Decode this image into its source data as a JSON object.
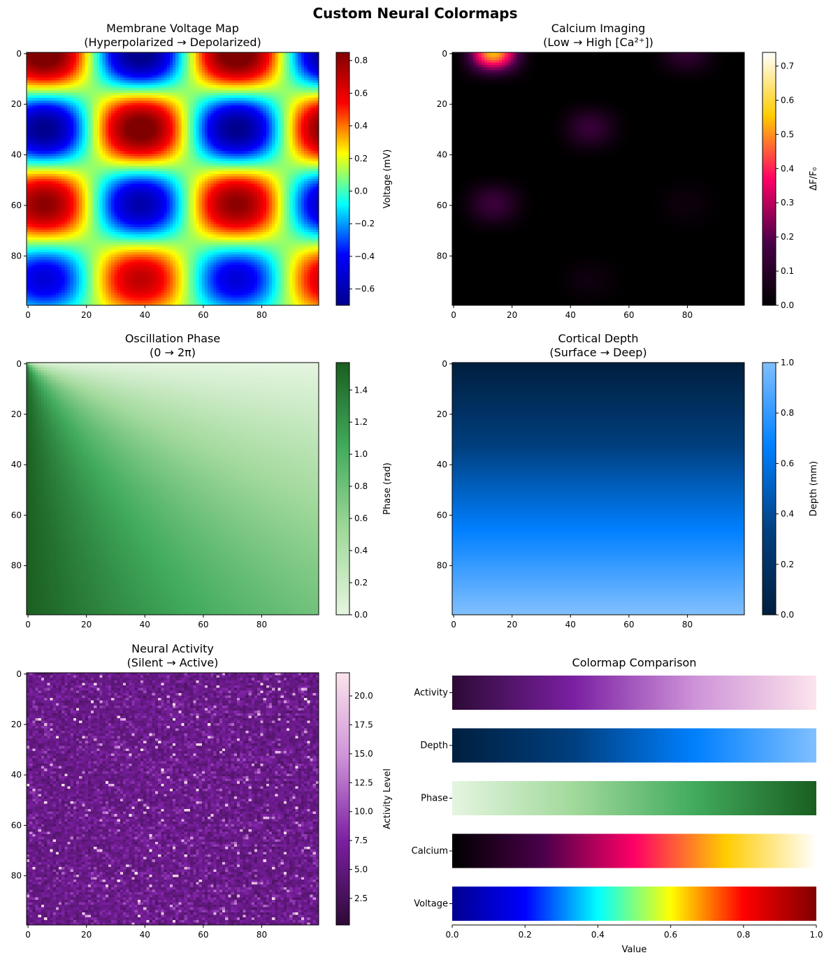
{
  "figure": {
    "title": "Custom Neural Colormaps"
  },
  "colormaps": {
    "Voltage": [
      "#00008f",
      "#0000ff",
      "#00ffff",
      "#ffff00",
      "#ff0000",
      "#800000"
    ],
    "Calcium": [
      "#000000",
      "#4a004a",
      "#ff0066",
      "#ffcc00",
      "#ffffff"
    ],
    "Phase": [
      "#e5f5e0",
      "#a1d99b",
      "#41ab5d",
      "#1a5e20"
    ],
    "Depth": [
      "#001f3f",
      "#003f7f",
      "#0080ff",
      "#80bfff"
    ],
    "Activity": [
      "#2d0a36",
      "#7b1fa2",
      "#ce93d8",
      "#fce4ec"
    ]
  },
  "chart_data": [
    {
      "type": "heatmap",
      "title": "Membrane Voltage Map\n(Hyperpolarized → Depolarized)",
      "field": "voltage",
      "grid": [
        100,
        100
      ],
      "colormap": "Voltage",
      "colorbar": {
        "label": "Voltage (mV)",
        "range": [
          -0.7,
          0.85
        ],
        "ticks": [
          -0.6,
          -0.4,
          -0.2,
          0.0,
          0.2,
          0.4,
          0.6,
          0.8
        ],
        "tick_labels": [
          "−0.6",
          "−0.4",
          "−0.2",
          "0.0",
          "0.2",
          "0.4",
          "0.6",
          "0.8"
        ]
      },
      "xticks": [
        0,
        20,
        40,
        60,
        80
      ],
      "yticks": [
        0,
        20,
        40,
        60,
        80
      ]
    },
    {
      "type": "heatmap",
      "title": "Calcium Imaging\n(Low → High [Ca²⁺])",
      "field": "calcium",
      "grid": [
        100,
        100
      ],
      "colormap": "Calcium",
      "colorbar": {
        "label": "ΔF/F₀",
        "range": [
          0,
          0.74
        ],
        "ticks": [
          0.0,
          0.1,
          0.2,
          0.3,
          0.4,
          0.5,
          0.6,
          0.7
        ],
        "tick_labels": [
          "0.0",
          "0.1",
          "0.2",
          "0.3",
          "0.4",
          "0.5",
          "0.6",
          "0.7"
        ]
      },
      "xticks": [
        0,
        20,
        40,
        60,
        80
      ],
      "yticks": [
        0,
        20,
        40,
        60,
        80
      ]
    },
    {
      "type": "heatmap",
      "title": "Oscillation Phase\n(0 → 2π)",
      "field": "phase",
      "grid": [
        100,
        100
      ],
      "colormap": "Phase",
      "colorbar": {
        "label": "Phase (rad)",
        "range": [
          0,
          1.5708
        ],
        "ticks": [
          0.0,
          0.2,
          0.4,
          0.6,
          0.8,
          1.0,
          1.2,
          1.4
        ],
        "tick_labels": [
          "0.0",
          "0.2",
          "0.4",
          "0.6",
          "0.8",
          "1.0",
          "1.2",
          "1.4"
        ]
      },
      "xticks": [
        0,
        20,
        40,
        60,
        80
      ],
      "yticks": [
        0,
        20,
        40,
        60,
        80
      ]
    },
    {
      "type": "heatmap",
      "title": "Cortical Depth\n(Surface → Deep)",
      "field": "depth",
      "grid": [
        100,
        100
      ],
      "colormap": "Depth",
      "colorbar": {
        "label": "Depth (mm)",
        "range": [
          0,
          1
        ],
        "ticks": [
          0.0,
          0.2,
          0.4,
          0.6,
          0.8,
          1.0
        ],
        "tick_labels": [
          "0.0",
          "0.2",
          "0.4",
          "0.6",
          "0.8",
          "1.0"
        ]
      },
      "xticks": [
        0,
        20,
        40,
        60,
        80
      ],
      "yticks": [
        0,
        20,
        40,
        60,
        80
      ]
    },
    {
      "type": "heatmap",
      "title": "Neural Activity\n(Silent → Active)",
      "field": "activity",
      "grid": [
        100,
        100
      ],
      "colormap": "Activity",
      "colorbar": {
        "label": "Activity Level",
        "range": [
          0.2,
          22
        ],
        "ticks": [
          2.5,
          5.0,
          7.5,
          10.0,
          12.5,
          15.0,
          17.5,
          20.0
        ],
        "tick_labels": [
          "2.5",
          "5.0",
          "7.5",
          "10.0",
          "12.5",
          "15.0",
          "17.5",
          "20.0"
        ]
      },
      "xticks": [
        0,
        20,
        40,
        60,
        80
      ],
      "yticks": [
        0,
        20,
        40,
        60,
        80
      ]
    },
    {
      "type": "bar",
      "title": "Colormap Comparison",
      "categories": [
        "Activity",
        "Depth",
        "Phase",
        "Calcium",
        "Voltage"
      ],
      "xlabel": "Value",
      "xlim": [
        0,
        1
      ],
      "xticks": [
        0.0,
        0.2,
        0.4,
        0.6,
        0.8,
        1.0
      ],
      "xtick_labels": [
        "0.0",
        "0.2",
        "0.4",
        "0.6",
        "0.8",
        "1.0"
      ]
    }
  ]
}
